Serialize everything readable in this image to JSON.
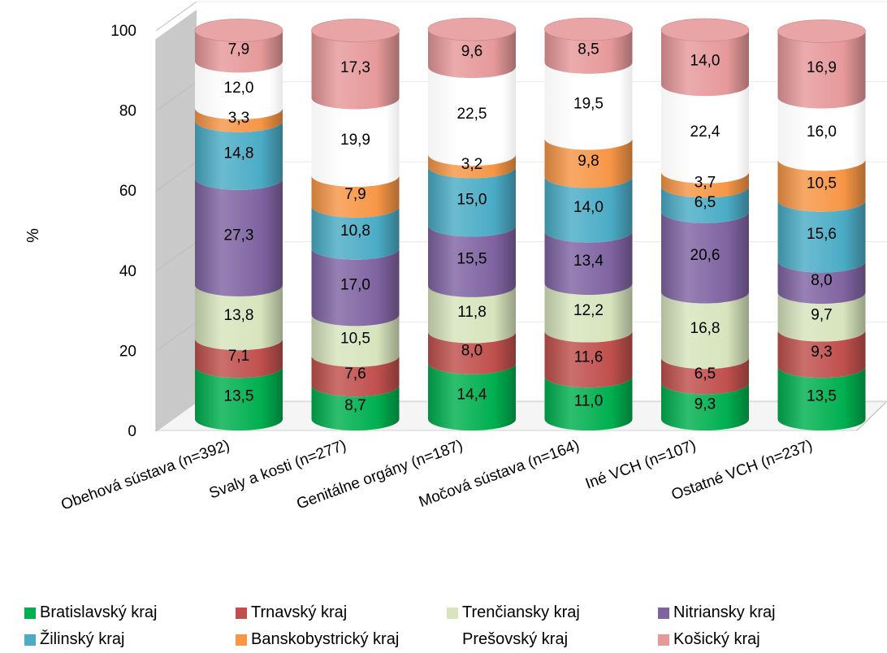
{
  "chart_data": {
    "type": "bar",
    "stacked": true,
    "style": "3d-cylinder",
    "title": "",
    "xlabel": "",
    "ylabel": "%",
    "ylim": [
      0,
      100
    ],
    "yticks": [
      "0",
      "20",
      "40",
      "60",
      "80",
      "100"
    ],
    "legend_position": "bottom",
    "categories": [
      "Obehová sústava (n=392)",
      "Svaly a kosti (n=277)",
      "Genitálne orgány (n=187)",
      "Močová sústava (n=164)",
      "Iné VCH (n=107)",
      "Ostatné VCH (n=237)"
    ],
    "series": [
      {
        "name": "Bratislavský kraj",
        "color": "#00b050",
        "values": [
          13.5,
          8.7,
          14.4,
          11.0,
          9.3,
          13.5
        ],
        "labels": [
          "13,5",
          "8,7",
          "14,4",
          "11,0",
          "9,3",
          "13,5"
        ]
      },
      {
        "name": "Trnavský kraj",
        "color": "#c0504d",
        "values": [
          7.1,
          7.6,
          8.0,
          11.6,
          6.5,
          9.3
        ],
        "labels": [
          "7,1",
          "7,6",
          "8,0",
          "11,6",
          "6,5",
          "9,3"
        ]
      },
      {
        "name": "Trenčiansky kraj",
        "color": "#d7e4bd",
        "values": [
          13.8,
          10.5,
          11.8,
          12.2,
          16.8,
          9.7
        ],
        "labels": [
          "13,8",
          "10,5",
          "11,8",
          "12,2",
          "16,8",
          "9,7"
        ]
      },
      {
        "name": "Nitriansky kraj",
        "color": "#8064a2",
        "values": [
          27.3,
          17.0,
          15.5,
          13.4,
          20.6,
          8.0
        ],
        "labels": [
          "27,3",
          "17,0",
          "15,5",
          "13,4",
          "20,6",
          "8,0"
        ]
      },
      {
        "name": "Žilinský kraj",
        "color": "#4bacc6",
        "values": [
          14.8,
          10.8,
          15.0,
          14.0,
          6.5,
          15.6
        ],
        "labels": [
          "14,8",
          "10,8",
          "15,0",
          "14,0",
          "6,5",
          "15,6"
        ]
      },
      {
        "name": "Banskobystrický kraj",
        "color": "#f79646",
        "values": [
          3.3,
          7.9,
          3.2,
          9.8,
          3.7,
          10.5
        ],
        "labels": [
          "3,3",
          "7,9",
          "3,2",
          "9,8",
          "3,7",
          "10,5"
        ]
      },
      {
        "name": "Prešovský kraj",
        "color": "#ffffff",
        "values": [
          12.0,
          19.9,
          22.5,
          19.5,
          22.4,
          16.0
        ],
        "labels": [
          "12,0",
          "19,9",
          "22,5",
          "19,5",
          "22,4",
          "16,0"
        ]
      },
      {
        "name": "Košický kraj",
        "color": "#e6999a",
        "values": [
          7.9,
          17.3,
          9.6,
          8.5,
          14.0,
          16.9
        ],
        "labels": [
          "7,9",
          "17,3",
          "9,6",
          "8,5",
          "14,0",
          "16,9"
        ]
      }
    ]
  }
}
